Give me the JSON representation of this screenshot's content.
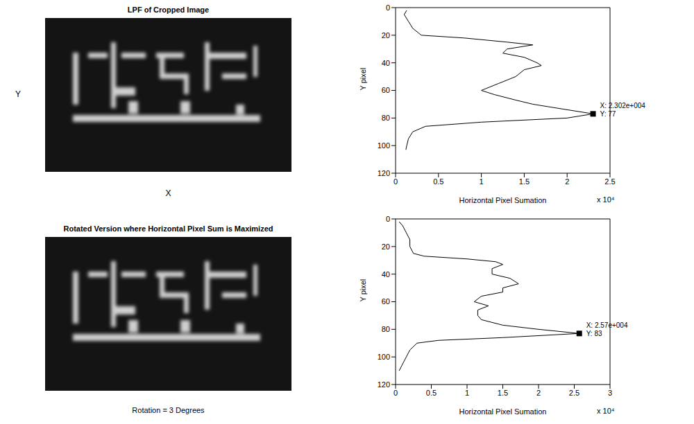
{
  "images": [
    {
      "title": "LPF of Cropped Image",
      "x_label": "X",
      "y_label": "Y"
    },
    {
      "title": "Rotated Version where Horizontal Pixel Sum is Maximized",
      "caption": "Rotation = 3 Degrees"
    }
  ],
  "chart_data": [
    {
      "type": "line",
      "x_label": "Horizontal Pixel Sumation",
      "x_multiplier": "x 10⁴",
      "y_label": "Y pixel",
      "xlim": [
        0,
        2.5
      ],
      "xticks": [
        0,
        0.5,
        1,
        1.5,
        2,
        2.5
      ],
      "ylim": [
        120,
        0
      ],
      "yticks": [
        0,
        20,
        40,
        60,
        80,
        100,
        120
      ],
      "color": "#000000",
      "x": [
        0.13,
        0.1,
        0.15,
        0.2,
        0.3,
        0.8,
        1.3,
        1.6,
        1.3,
        1.25,
        1.5,
        1.65,
        1.7,
        1.5,
        1.4,
        1.2,
        1.0,
        1.15,
        1.4,
        1.6,
        1.9,
        2.302,
        2.0,
        1.0,
        0.35,
        0.2,
        0.15,
        0.13,
        0.12
      ],
      "y": [
        2,
        5,
        10,
        15,
        20,
        22,
        25,
        27,
        30,
        33,
        36,
        40,
        42,
        45,
        50,
        55,
        60,
        63,
        67,
        70,
        73,
        77,
        80,
        83,
        86,
        90,
        95,
        100,
        103
      ],
      "annotation": {
        "x": 2.302,
        "y": 77,
        "lines": [
          "X: 2.302e+004",
          "Y: 77"
        ]
      }
    },
    {
      "type": "line",
      "x_label": "Horizontal Pixel Sumation",
      "x_multiplier": "x 10⁴",
      "y_label": "Y pixel",
      "xlim": [
        0,
        3
      ],
      "xticks": [
        0,
        0.5,
        1,
        1.5,
        2,
        2.5,
        3
      ],
      "ylim": [
        120,
        0
      ],
      "yticks": [
        0,
        20,
        40,
        60,
        80,
        100,
        120
      ],
      "color": "#000000",
      "x": [
        0.05,
        0.1,
        0.15,
        0.2,
        0.2,
        0.25,
        0.4,
        1.0,
        1.4,
        1.5,
        1.35,
        1.35,
        1.6,
        1.72,
        1.5,
        1.5,
        1.2,
        1.1,
        1.3,
        1.15,
        1.15,
        1.2,
        1.5,
        2.0,
        2.57,
        1.5,
        0.6,
        0.3,
        0.2,
        0.15,
        0.1,
        0.05
      ],
      "y": [
        2,
        5,
        10,
        15,
        20,
        25,
        27,
        29,
        31,
        33,
        36,
        40,
        43,
        47,
        50,
        53,
        56,
        60,
        63,
        66,
        70,
        73,
        77,
        80,
        83,
        86,
        88,
        90,
        95,
        100,
        105,
        110
      ],
      "annotation": {
        "x": 2.57,
        "y": 83,
        "lines": [
          "X: 2.57e+004",
          "Y: 83"
        ]
      }
    }
  ]
}
